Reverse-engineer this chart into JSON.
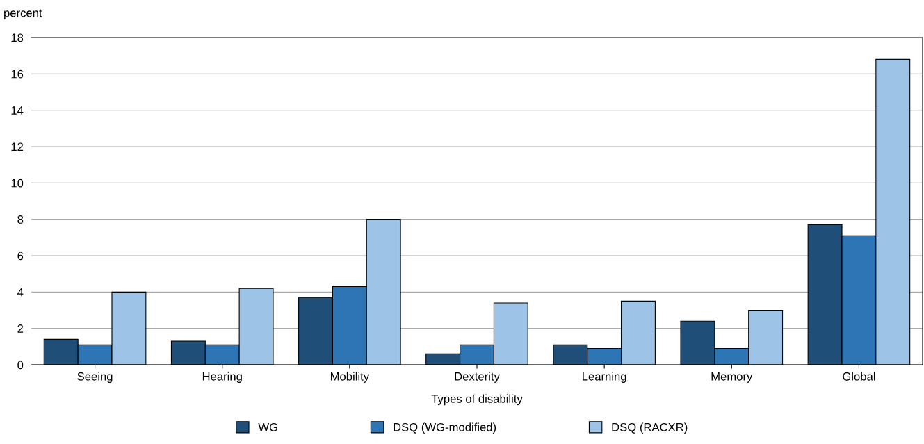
{
  "chart_data": {
    "type": "bar",
    "ylabel": "percent",
    "xlabel": "Types of disability",
    "categories": [
      "Seeing",
      "Hearing",
      "Mobility",
      "Dexterity",
      "Learning",
      "Memory",
      "Global"
    ],
    "series": [
      {
        "name": "WG",
        "color": "#1f4e79",
        "values": [
          1.4,
          1.3,
          3.7,
          0.6,
          1.1,
          2.4,
          7.7
        ]
      },
      {
        "name": "DSQ (WG-modified)",
        "color": "#2e75b6",
        "values": [
          1.1,
          1.1,
          4.3,
          1.1,
          0.9,
          0.9,
          7.1
        ]
      },
      {
        "name": "DSQ (RACXR)",
        "color": "#9dc3e6",
        "values": [
          4.0,
          4.2,
          8.0,
          3.4,
          3.5,
          3.0,
          16.8
        ]
      }
    ],
    "ylim": [
      0,
      18
    ],
    "yticks": [
      0,
      2,
      4,
      6,
      8,
      10,
      12,
      14,
      16,
      18
    ],
    "grid": "y",
    "legend": "bottom"
  }
}
